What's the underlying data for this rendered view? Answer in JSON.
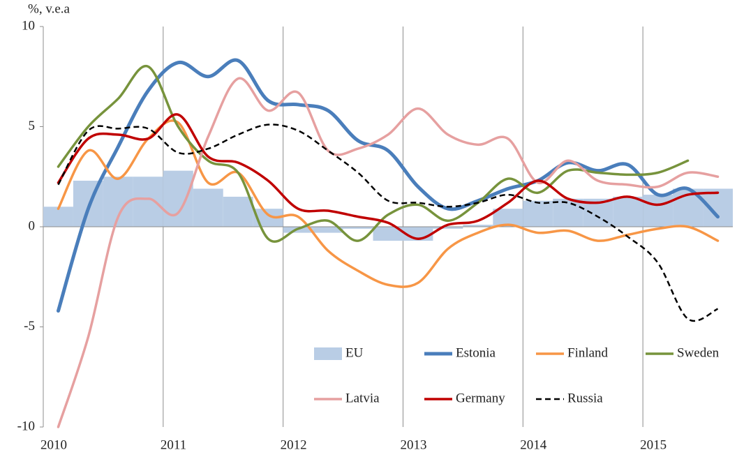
{
  "chart_data": {
    "type": "combo",
    "y_label": "%, v.e.a",
    "x": [
      2010.125,
      2010.375,
      2010.625,
      2010.875,
      2011.125,
      2011.375,
      2011.625,
      2011.875,
      2012.125,
      2012.375,
      2012.625,
      2012.875,
      2013.125,
      2013.375,
      2013.625,
      2013.875,
      2014.125,
      2014.375,
      2014.625,
      2014.875,
      2015.125,
      2015.375,
      2015.625
    ],
    "xlim": [
      2010,
      2015.75
    ],
    "xticks": [
      2010,
      2011,
      2012,
      2013,
      2014,
      2015
    ],
    "ylim": [
      -10,
      10
    ],
    "yticks": [
      -10,
      -5,
      0,
      5,
      10
    ],
    "grid": "vertical",
    "series": [
      {
        "name": "EU",
        "type": "bar",
        "color": "#b9cde5",
        "values": [
          1.0,
          2.3,
          2.5,
          2.5,
          2.8,
          1.9,
          1.5,
          0.9,
          -0.3,
          -0.3,
          -0.1,
          -0.7,
          -0.7,
          -0.1,
          0.1,
          0.9,
          1.3,
          1.4,
          1.4,
          1.5,
          1.6,
          1.9,
          1.9
        ]
      },
      {
        "name": "Estonia",
        "type": "line",
        "color": "#4a7ebb",
        "values": [
          -4.2,
          0.9,
          4.0,
          6.8,
          8.2,
          7.5,
          8.3,
          6.3,
          6.1,
          5.8,
          4.3,
          3.8,
          2.0,
          0.9,
          1.3,
          1.9,
          2.3,
          3.2,
          2.8,
          3.1,
          1.6,
          1.9,
          0.5
        ]
      },
      {
        "name": "Finland",
        "type": "line",
        "color": "#f79646",
        "values": [
          0.9,
          3.8,
          2.4,
          4.4,
          5.2,
          2.2,
          2.7,
          0.6,
          0.5,
          -1.2,
          -2.2,
          -2.9,
          -2.8,
          -1.1,
          -0.3,
          0.1,
          -0.3,
          -0.2,
          -0.7,
          -0.4,
          -0.1,
          0.0,
          -0.7
        ]
      },
      {
        "name": "Sweden",
        "type": "line",
        "color": "#77933c",
        "values": [
          3.0,
          5.0,
          6.4,
          8.0,
          5.0,
          3.3,
          2.7,
          -0.6,
          -0.1,
          0.3,
          -0.7,
          0.6,
          1.1,
          0.3,
          1.2,
          2.4,
          1.7,
          2.8,
          2.7,
          2.6,
          2.7,
          3.3,
          null
        ]
      },
      {
        "name": "Latvia",
        "type": "line",
        "color": "#e6a0a0",
        "values": [
          -10,
          -5.5,
          0.5,
          1.4,
          0.7,
          4.5,
          7.4,
          5.8,
          6.7,
          3.8,
          3.9,
          4.6,
          5.9,
          4.6,
          4.1,
          4.4,
          2.2,
          3.3,
          2.3,
          2.1,
          2.0,
          2.7,
          2.5
        ]
      },
      {
        "name": "Germany",
        "type": "line",
        "color": "#c00000",
        "values": [
          2.2,
          4.4,
          4.6,
          4.4,
          5.6,
          3.5,
          3.2,
          2.3,
          0.9,
          0.8,
          0.5,
          0.2,
          -0.6,
          0.1,
          0.3,
          1.2,
          2.3,
          1.4,
          1.2,
          1.5,
          1.1,
          1.6,
          1.7
        ]
      },
      {
        "name": "Russia",
        "type": "line",
        "dash": "dashed",
        "color": "#000000",
        "values": [
          2.1,
          4.8,
          4.9,
          4.9,
          3.7,
          3.9,
          4.6,
          5.1,
          4.8,
          3.8,
          2.7,
          1.3,
          1.2,
          1.0,
          1.2,
          1.6,
          1.2,
          1.2,
          0.5,
          -0.5,
          -1.8,
          -4.6,
          -4.1
        ]
      }
    ]
  }
}
